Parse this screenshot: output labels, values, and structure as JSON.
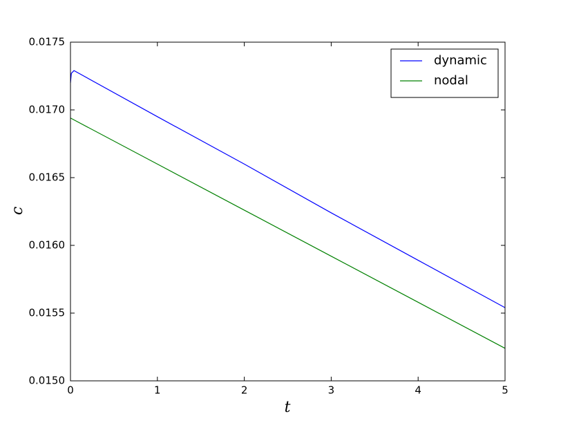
{
  "chart_data": {
    "type": "line",
    "xlabel": "t",
    "ylabel": "c",
    "xlim": [
      0,
      5
    ],
    "ylim": [
      0.015,
      0.0175
    ],
    "xticks": [
      0,
      1,
      2,
      3,
      4,
      5
    ],
    "yticks": [
      {
        "value": 0.015,
        "label": "0.0150"
      },
      {
        "value": 0.0155,
        "label": "0.0155"
      },
      {
        "value": 0.016,
        "label": "0.0160"
      },
      {
        "value": 0.0165,
        "label": "0.0165"
      },
      {
        "value": 0.017,
        "label": "0.0170"
      },
      {
        "value": 0.0175,
        "label": "0.0175"
      }
    ],
    "legend": "upper right",
    "series": [
      {
        "name": "dynamic",
        "color": "#0000ff",
        "x": [
          0,
          0.01,
          0.04,
          1,
          2,
          3,
          4,
          5
        ],
        "values": [
          0.0172,
          0.01727,
          0.01729,
          0.01695,
          0.0166,
          0.01624,
          0.01589,
          0.01554
        ]
      },
      {
        "name": "nodal",
        "color": "#008000",
        "x": [
          0,
          1,
          2,
          3,
          4,
          5
        ],
        "values": [
          0.01694,
          0.0166,
          0.01626,
          0.01592,
          0.01558,
          0.01524
        ]
      }
    ]
  }
}
